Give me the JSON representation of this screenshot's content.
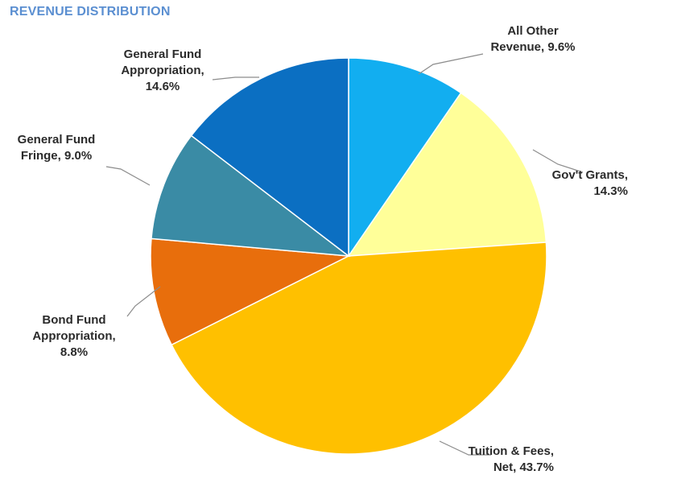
{
  "chart_data": {
    "type": "pie",
    "title": "REVENUE DISTRIBUTION",
    "start_angle_deg": 0,
    "direction": "clockwise",
    "slices": [
      {
        "name": "All Other Revenue",
        "value": 9.6,
        "color": "#12aef0",
        "label_lines": [
          "All Other",
          "Revenue, 9.6%"
        ]
      },
      {
        "name": "Gov't Grants",
        "value": 14.3,
        "color": "#ffff99",
        "label_lines": [
          "Gov't Grants,",
          "14.3%"
        ]
      },
      {
        "name": "Tuition & Fees, Net",
        "value": 43.7,
        "color": "#ffc000",
        "label_lines": [
          "Tuition & Fees,",
          "Net, 43.7%"
        ]
      },
      {
        "name": "Bond Fund Appropriation",
        "value": 8.8,
        "color": "#e86e0c",
        "label_lines": [
          "Bond Fund",
          "Appropriation,",
          "8.8%"
        ]
      },
      {
        "name": "General Fund Fringe",
        "value": 9.0,
        "color": "#3a8ba5",
        "label_lines": [
          "General Fund",
          "Fringe, 9.0%"
        ]
      },
      {
        "name": "General Fund Appropriation",
        "value": 14.6,
        "color": "#0b6fc2",
        "label_lines": [
          "General Fund",
          "Appropriation,",
          "14.6%"
        ]
      }
    ]
  }
}
